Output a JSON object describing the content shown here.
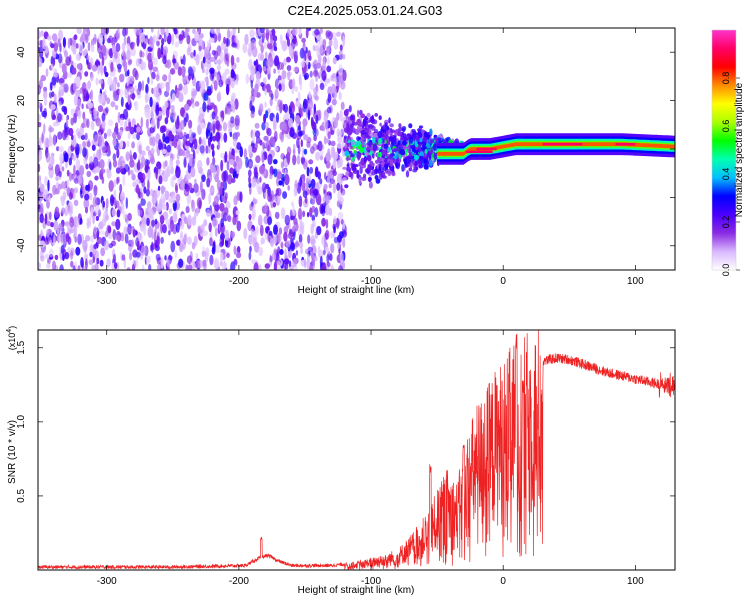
{
  "title": "C2E4.2025.053.01.24.G03",
  "chart_data": [
    {
      "type": "heatmap",
      "xlabel": "Height of straight line (km)",
      "ylabel": "Frequency (Hz)",
      "xlim": [
        -352,
        130
      ],
      "ylim": [
        -50,
        50
      ],
      "xticks": [
        -300,
        -200,
        -100,
        0,
        100
      ],
      "yticks": [
        -40,
        -20,
        0,
        20,
        40
      ],
      "colorbar": {
        "label": "Normalized spectral amplitude",
        "range": [
          0.0,
          1.0
        ],
        "ticks": [
          "0.0",
          "0.2",
          "0.4",
          "0.6",
          "0.8"
        ],
        "colors": [
          "#ffffff",
          "#d9b8ff",
          "#8a2be2",
          "#4b00ff",
          "#0000ff",
          "#00bfff",
          "#00ffb0",
          "#00ff00",
          "#aaff00",
          "#ffff00",
          "#ff8c00",
          "#ff0000",
          "#ff0066",
          "#ff33cc"
        ]
      },
      "features": {
        "noise_region_x": [
          -352,
          -120
        ],
        "transition_region_x": [
          -120,
          -30
        ],
        "tone_region_x": [
          -30,
          130
        ],
        "tone_frequency_hz": [
          [
            -30,
            -2
          ],
          [
            -25,
            0
          ],
          [
            -10,
            0
          ],
          [
            0,
            1
          ],
          [
            10,
            2
          ],
          [
            60,
            2
          ],
          [
            90,
            2
          ],
          [
            130,
            1
          ]
        ]
      }
    },
    {
      "type": "line",
      "xlabel": "Height of straight line (km)",
      "ylabel": "SNR (10 * v/v)",
      "yscale_label": "(x10",
      "yscale_exp": "4",
      "xlim": [
        -352,
        130
      ],
      "ylim": [
        0,
        1.62
      ],
      "xticks": [
        -300,
        -200,
        -100,
        0,
        100
      ],
      "yticks": [
        "0.5",
        "1.0",
        "1.5"
      ],
      "color": "#ee2222",
      "envelope_x": [
        -352,
        -250,
        -195,
        -185,
        -178,
        -170,
        -160,
        -130,
        -110,
        -95,
        -80,
        -70,
        -60,
        -50,
        -42,
        -35,
        -28,
        -20,
        -12,
        -5,
        0,
        5,
        10,
        15,
        20,
        25,
        30,
        40,
        50,
        60,
        70,
        80,
        90,
        100,
        110,
        120,
        130
      ],
      "envelope_y": [
        0.02,
        0.02,
        0.03,
        0.08,
        0.1,
        0.06,
        0.03,
        0.03,
        0.05,
        0.08,
        0.12,
        0.2,
        0.3,
        0.45,
        0.58,
        0.5,
        0.75,
        0.95,
        1.05,
        1.15,
        1.2,
        1.25,
        1.3,
        1.32,
        1.35,
        1.38,
        1.41,
        1.43,
        1.42,
        1.39,
        1.36,
        1.33,
        1.31,
        1.29,
        1.27,
        1.25,
        1.24
      ],
      "peaks": [
        [
          -183,
          0.22
        ],
        [
          -55,
          0.72
        ],
        [
          -30,
          0.85
        ],
        [
          10,
          1.6
        ],
        [
          15,
          1.3
        ]
      ]
    }
  ]
}
